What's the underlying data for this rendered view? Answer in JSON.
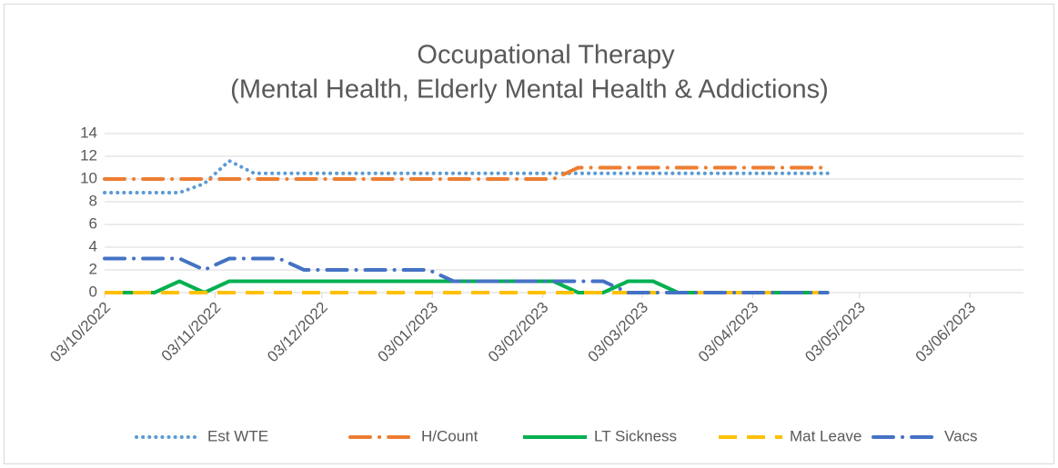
{
  "chart_data": {
    "type": "line",
    "title": "Occupational Therapy",
    "subtitle": "(Mental Health, Elderly Mental Health & Addictions)",
    "x": [
      "2022-10-03",
      "2022-10-10",
      "2022-10-17",
      "2022-10-24",
      "2022-10-31",
      "2022-11-07",
      "2022-11-14",
      "2022-11-21",
      "2022-11-28",
      "2022-12-05",
      "2022-12-12",
      "2022-12-19",
      "2022-12-26",
      "2023-01-02",
      "2023-01-09",
      "2023-01-16",
      "2023-01-23",
      "2023-01-30",
      "2023-02-06",
      "2023-02-13",
      "2023-02-20",
      "2023-02-27",
      "2023-03-06",
      "2023-03-13",
      "2023-03-20",
      "2023-03-27",
      "2023-04-03",
      "2023-04-10",
      "2023-04-17",
      "2023-04-24"
    ],
    "series": [
      {
        "name": "Est WTE",
        "color": "#5b9bd5",
        "dash": "dot",
        "values": [
          8.8,
          8.8,
          8.8,
          8.8,
          9.6,
          11.6,
          10.5,
          10.5,
          10.5,
          10.5,
          10.5,
          10.5,
          10.5,
          10.5,
          10.5,
          10.5,
          10.5,
          10.5,
          10.5,
          10.5,
          10.5,
          10.5,
          10.5,
          10.5,
          10.5,
          10.5,
          10.5,
          10.5,
          10.5,
          10.5
        ]
      },
      {
        "name": "H/Count",
        "color": "#ed7d31",
        "dash": "dash-dot",
        "values": [
          10,
          10,
          10,
          10,
          10,
          10,
          10,
          10,
          10,
          10,
          10,
          10,
          10,
          10,
          10,
          10,
          10,
          10,
          10,
          11,
          11,
          11,
          11,
          11,
          11,
          11,
          11,
          11,
          11,
          11
        ]
      },
      {
        "name": "LT Sickness",
        "color": "#00b050",
        "dash": "solid",
        "values": [
          0,
          0,
          0,
          1,
          0,
          1,
          1,
          1,
          1,
          1,
          1,
          1,
          1,
          1,
          1,
          1,
          1,
          1,
          1,
          0,
          0,
          1,
          1,
          0,
          0,
          0,
          0,
          0,
          0,
          0
        ]
      },
      {
        "name": "Mat Leave",
        "color": "#ffc000",
        "dash": "dash",
        "values": [
          0,
          0,
          0,
          0,
          0,
          0,
          0,
          0,
          0,
          0,
          0,
          0,
          0,
          0,
          0,
          0,
          0,
          0,
          0,
          0,
          0,
          0,
          0,
          0,
          0,
          0,
          0,
          0,
          0,
          0
        ]
      },
      {
        "name": "Vacs",
        "color": "#4472c4",
        "dash": "dash-dot",
        "values": [
          3,
          3,
          3,
          3,
          2,
          3,
          3,
          3,
          2,
          2,
          2,
          2,
          2,
          2,
          1,
          1,
          1,
          1,
          1,
          1,
          1,
          0,
          0,
          0,
          0,
          0,
          0,
          0,
          0,
          0
        ]
      }
    ],
    "xlim": [
      "2022-10-03",
      "2023-06-18"
    ],
    "xticks": [
      {
        "value": "2022-10-03",
        "label": "03/10/2022"
      },
      {
        "value": "2022-11-03",
        "label": "03/11/2022"
      },
      {
        "value": "2022-12-03",
        "label": "03/12/2022"
      },
      {
        "value": "2023-01-03",
        "label": "03/01/2023"
      },
      {
        "value": "2023-02-03",
        "label": "03/02/2023"
      },
      {
        "value": "2023-03-03",
        "label": "03/03/2023"
      },
      {
        "value": "2023-04-03",
        "label": "03/04/2023"
      },
      {
        "value": "2023-05-03",
        "label": "03/05/2023"
      },
      {
        "value": "2023-06-03",
        "label": "03/06/2023"
      }
    ],
    "ylim": [
      0,
      14
    ],
    "yticks": [
      0,
      2,
      4,
      6,
      8,
      10,
      12,
      14
    ],
    "grid": true,
    "legend": "bottom"
  }
}
